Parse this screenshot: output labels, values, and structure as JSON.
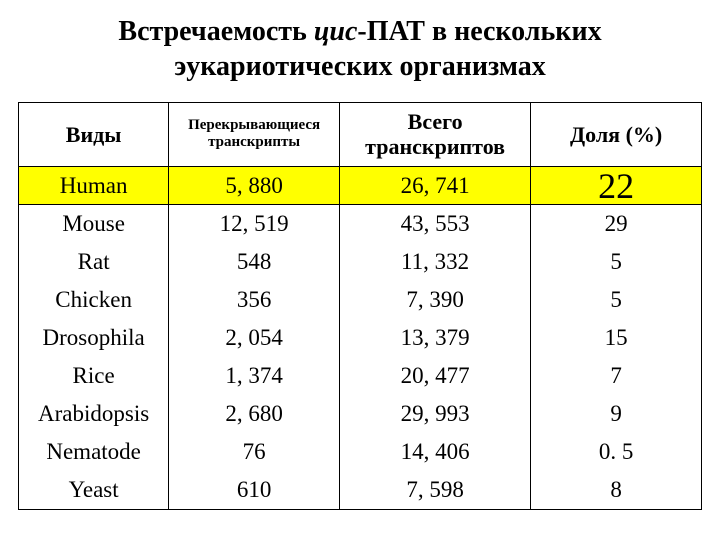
{
  "title_pre": "Встречаемость ",
  "title_italic": "цис",
  "title_post": "-ПАТ в нескольких эукариотических организмах",
  "columns": {
    "c1": "Виды",
    "c2": "Перекрывающиеся транскрипты",
    "c3": "Всего транскриптов",
    "c4": "Доля (%)"
  },
  "highlight_row": {
    "species": "Human",
    "overlap": "5, 880",
    "total": "26, 741",
    "pct": "22"
  },
  "rows": [
    {
      "species": "Mouse",
      "overlap": "12, 519",
      "total": "43, 553",
      "pct": "29"
    },
    {
      "species": "Rat",
      "overlap": "548",
      "total": "11, 332",
      "pct": "5"
    },
    {
      "species": "Chicken",
      "overlap": "356",
      "total": "7, 390",
      "pct": "5"
    },
    {
      "species": "Drosophila",
      "overlap": "2, 054",
      "total": "13, 379",
      "pct": "15"
    },
    {
      "species": "Rice",
      "overlap": "1, 374",
      "total": "20, 477",
      "pct": "7"
    },
    {
      "species": "Arabidopsis",
      "overlap": "2, 680",
      "total": "29, 993",
      "pct": "9"
    },
    {
      "species": "Nematode",
      "overlap": "76",
      "total": "14, 406",
      "pct": "0. 5"
    },
    {
      "species": "Yeast",
      "overlap": "610",
      "total": "7, 598",
      "pct": "8"
    }
  ],
  "styling": {
    "type": "table",
    "background_color": "#ffffff",
    "text_color": "#000000",
    "border_color": "#000000",
    "highlight_color": "#ffff00",
    "title_fontsize": 28,
    "header_fontsize": 22,
    "header_small_fontsize": 15,
    "cell_fontsize": 23,
    "highlight_pct_fontsize": 36,
    "font_family": "Times New Roman",
    "column_widths_pct": [
      22,
      25,
      28,
      25
    ]
  }
}
